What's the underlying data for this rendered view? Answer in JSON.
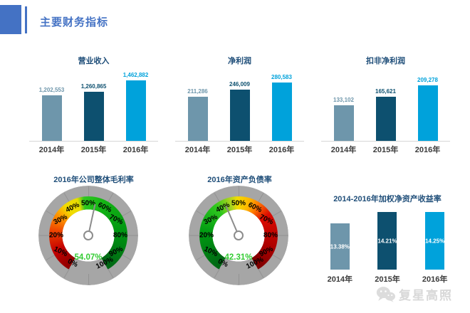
{
  "header": {
    "title": "主要财务指标"
  },
  "colors": {
    "header_blue": "#4472C4",
    "title_navy": "#1F4E79",
    "series": [
      "#6E96AB",
      "#0D506F",
      "#00A2DB"
    ],
    "inside_label": "#FFFFFF",
    "gauge_ring_gray": "#A6A6A6",
    "gauge_value_green": "#33CC33",
    "axis_line_gray": "#D6D6D6"
  },
  "chart_data": [
    {
      "type": "bar",
      "title": "营业收入",
      "categories": [
        "2014年",
        "2015年",
        "2016年"
      ],
      "values": [
        1202553,
        1260865,
        1462882
      ],
      "labels": [
        "1,202,553",
        "1,260,865",
        "1,462,882"
      ],
      "ylim": [
        400000,
        1500000
      ],
      "label_position": "outside"
    },
    {
      "type": "bar",
      "title": "净利润",
      "categories": [
        "2014年",
        "2015年",
        "2016年"
      ],
      "values": [
        211286,
        246009,
        280583
      ],
      "labels": [
        "211,286",
        "246,009",
        "280,583"
      ],
      "ylim": [
        0,
        300000
      ],
      "label_position": "outside"
    },
    {
      "type": "bar",
      "title": "扣非净利润",
      "categories": [
        "2014年",
        "2015年",
        "2016年"
      ],
      "values": [
        133102,
        165621,
        209278
      ],
      "labels": [
        "133,102",
        "165,621",
        "209,278"
      ],
      "ylim": [
        0,
        235000
      ],
      "label_position": "outside"
    },
    {
      "type": "gauge",
      "title": "2016年公司整体毛利率",
      "value": 54.07,
      "value_label": "54.07%",
      "min": 0,
      "max": 100,
      "start_angle": -150,
      "sweep": 300,
      "tick_labels": [
        "0%",
        "10%",
        "20%",
        "30%",
        "40%",
        "50%",
        "60%",
        "70%",
        "80%",
        "90%",
        "100%"
      ],
      "gradient": [
        [
          0,
          "#8B0000"
        ],
        [
          35,
          "#C40000"
        ],
        [
          68,
          "#EE4400"
        ],
        [
          95,
          "#FF9900"
        ],
        [
          112,
          "#F2DC00"
        ],
        [
          133,
          "#E8DC00"
        ],
        [
          143,
          "#2EC81E"
        ],
        [
          175,
          "#14B414"
        ],
        [
          235,
          "#009612"
        ],
        [
          300,
          "#006414"
        ]
      ]
    },
    {
      "type": "gauge",
      "title": "2016年资产负债率",
      "value": 42.31,
      "value_label": "42.31%",
      "min": 0,
      "max": 100,
      "start_angle": -150,
      "sweep": 300,
      "tick_labels": [
        "0%",
        "10%",
        "20%",
        "30%",
        "40%",
        "50%",
        "60%",
        "70%",
        "80%",
        "90%",
        "100%"
      ],
      "gradient": [
        [
          0,
          "#006414"
        ],
        [
          65,
          "#009A12"
        ],
        [
          112,
          "#2EC81E"
        ],
        [
          138,
          "#B4D41E"
        ],
        [
          148,
          "#F2DC00"
        ],
        [
          168,
          "#FFB400"
        ],
        [
          182,
          "#FF7800"
        ],
        [
          205,
          "#DC0A00"
        ],
        [
          262,
          "#AA0000"
        ],
        [
          300,
          "#7A0000"
        ]
      ]
    },
    {
      "type": "bar",
      "title": "2014-2016年加权净资产收益率",
      "categories": [
        "2014年",
        "2015年",
        "2016年"
      ],
      "values": [
        13.38,
        14.21,
        14.25
      ],
      "labels": [
        "13.38%",
        "14.21%",
        "14.25%"
      ],
      "ylim": [
        9.8,
        15
      ],
      "label_position": "inside"
    }
  ],
  "watermark": {
    "text": "复星高照",
    "icon": "wechat-icon"
  }
}
